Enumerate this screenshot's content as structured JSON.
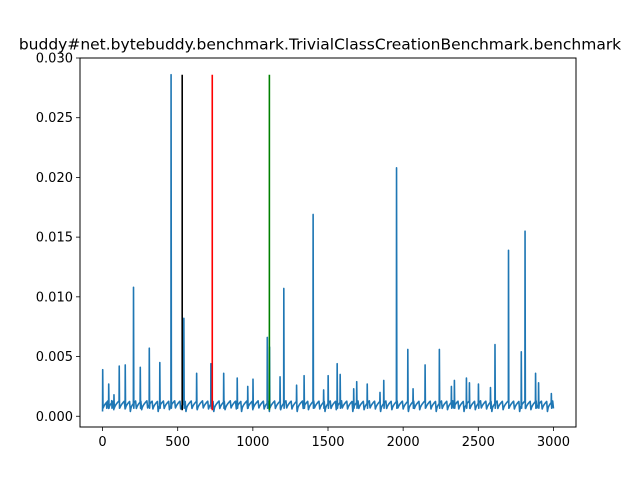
{
  "chart_data": {
    "type": "line",
    "title": "buddy#net.bytebuddy.benchmark.TrivialClassCreationBenchmark.benchmark",
    "xlabel": "",
    "ylabel": "",
    "xlim": [
      -150,
      3150
    ],
    "ylim": [
      -0.0009,
      0.03
    ],
    "xticks": [
      0,
      500,
      1000,
      1500,
      2000,
      2500,
      3000
    ],
    "xtick_labels": [
      "0",
      "500",
      "1000",
      "1500",
      "2000",
      "2500",
      "3000"
    ],
    "yticks": [
      0.0,
      0.005,
      0.01,
      0.015,
      0.02,
      0.025,
      0.03
    ],
    "ytick_labels": [
      "0.000",
      "0.005",
      "0.010",
      "0.015",
      "0.020",
      "0.025",
      "0.030"
    ],
    "grid": false,
    "series_color": "#1f77b4",
    "sawtooth_period": 37,
    "baseline": {
      "low": 0.0004,
      "high": 0.0013
    },
    "spikes": [
      {
        "x": 0,
        "y": 0.0039
      },
      {
        "x": 25,
        "y": 0.0011
      },
      {
        "x": 40,
        "y": 0.0027
      },
      {
        "x": 60,
        "y": 0.0013
      },
      {
        "x": 75,
        "y": 0.0018
      },
      {
        "x": 110,
        "y": 0.0042
      },
      {
        "x": 150,
        "y": 0.0043
      },
      {
        "x": 205,
        "y": 0.0108
      },
      {
        "x": 250,
        "y": 0.0041
      },
      {
        "x": 310,
        "y": 0.0057
      },
      {
        "x": 380,
        "y": 0.0045
      },
      {
        "x": 455,
        "y": 0.0286
      },
      {
        "x": 540,
        "y": 0.0082
      },
      {
        "x": 625,
        "y": 0.0036
      },
      {
        "x": 720,
        "y": 0.0044
      },
      {
        "x": 805,
        "y": 0.0036
      },
      {
        "x": 895,
        "y": 0.0032
      },
      {
        "x": 965,
        "y": 0.0025
      },
      {
        "x": 1000,
        "y": 0.0031
      },
      {
        "x": 1095,
        "y": 0.0066
      },
      {
        "x": 1110,
        "y": 0.0058
      },
      {
        "x": 1180,
        "y": 0.0033
      },
      {
        "x": 1205,
        "y": 0.0107
      },
      {
        "x": 1290,
        "y": 0.0026
      },
      {
        "x": 1340,
        "y": 0.0034
      },
      {
        "x": 1400,
        "y": 0.0169
      },
      {
        "x": 1470,
        "y": 0.0022
      },
      {
        "x": 1500,
        "y": 0.0034
      },
      {
        "x": 1560,
        "y": 0.0044
      },
      {
        "x": 1580,
        "y": 0.0035
      },
      {
        "x": 1670,
        "y": 0.0023
      },
      {
        "x": 1690,
        "y": 0.0029
      },
      {
        "x": 1760,
        "y": 0.0027
      },
      {
        "x": 1845,
        "y": 0.002
      },
      {
        "x": 1870,
        "y": 0.003
      },
      {
        "x": 1955,
        "y": 0.0208
      },
      {
        "x": 2030,
        "y": 0.0056
      },
      {
        "x": 2065,
        "y": 0.0023
      },
      {
        "x": 2145,
        "y": 0.0043
      },
      {
        "x": 2240,
        "y": 0.0056
      },
      {
        "x": 2320,
        "y": 0.0025
      },
      {
        "x": 2340,
        "y": 0.003
      },
      {
        "x": 2420,
        "y": 0.0032
      },
      {
        "x": 2440,
        "y": 0.0028
      },
      {
        "x": 2500,
        "y": 0.0027
      },
      {
        "x": 2580,
        "y": 0.0024
      },
      {
        "x": 2610,
        "y": 0.006
      },
      {
        "x": 2700,
        "y": 0.0139
      },
      {
        "x": 2785,
        "y": 0.0054
      },
      {
        "x": 2810,
        "y": 0.0155
      },
      {
        "x": 2880,
        "y": 0.0036
      },
      {
        "x": 2900,
        "y": 0.0028
      },
      {
        "x": 2985,
        "y": 0.0019
      }
    ],
    "vlines": [
      {
        "x": 530,
        "ymin": 0.0005,
        "ymax": 0.0286,
        "color": "#000000"
      },
      {
        "x": 730,
        "ymin": 0.0005,
        "ymax": 0.0286,
        "color": "#ff0000"
      },
      {
        "x": 1110,
        "ymin": 0.0005,
        "ymax": 0.0286,
        "color": "#008000"
      }
    ],
    "x_end": 3000
  }
}
